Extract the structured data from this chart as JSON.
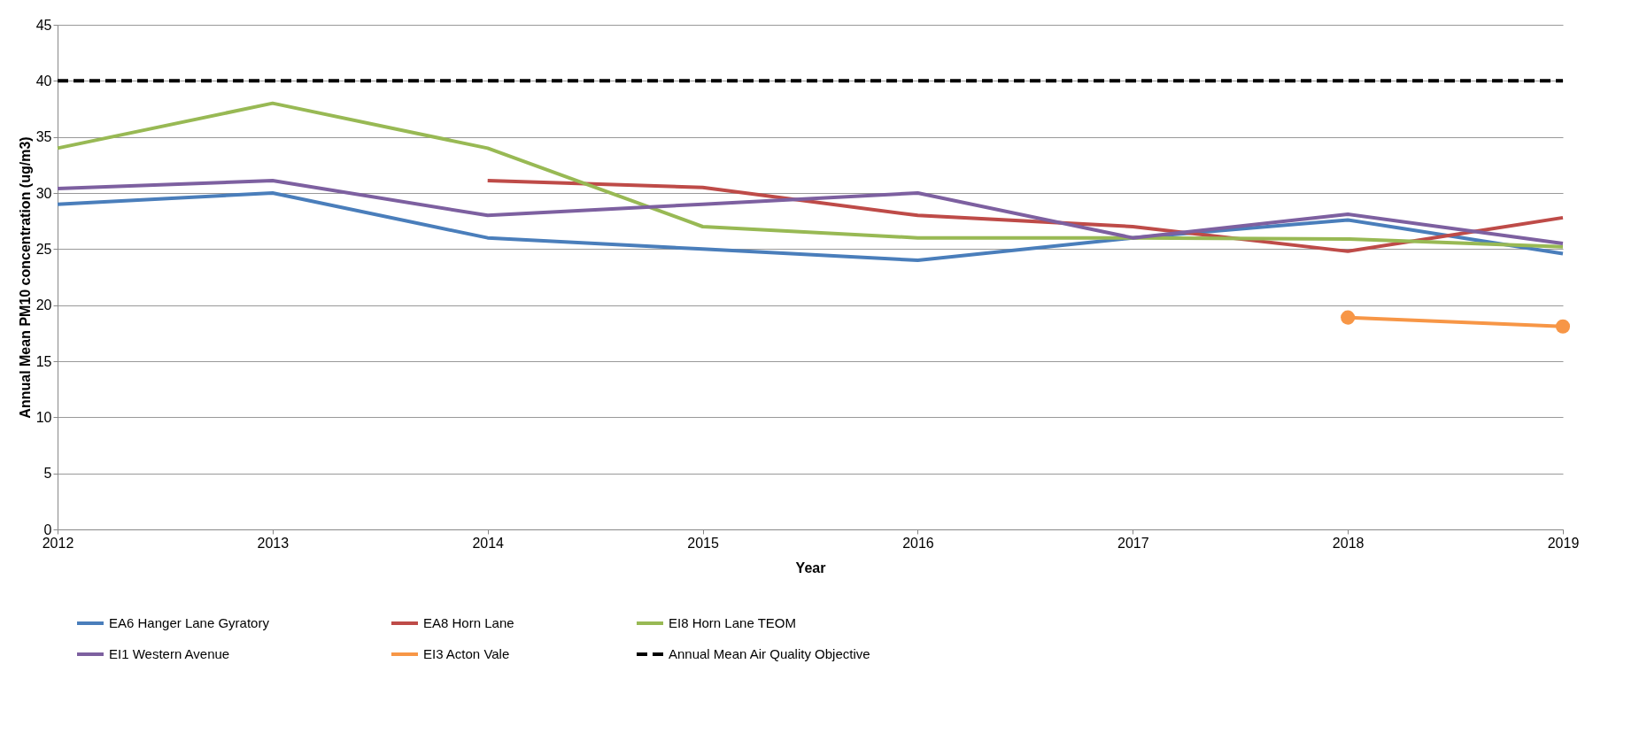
{
  "chart_data": {
    "type": "line",
    "xlabel": "Year",
    "ylabel": "Annual Mean PM10 concentration (ug/m3)",
    "x": [
      2012,
      2013,
      2014,
      2015,
      2016,
      2017,
      2018,
      2019
    ],
    "xlim": [
      2012,
      2019
    ],
    "xticks": [
      2012,
      2013,
      2014,
      2015,
      2016,
      2017,
      2018,
      2019
    ],
    "ylim": [
      0,
      45
    ],
    "yticks": [
      0,
      5,
      10,
      15,
      20,
      25,
      30,
      35,
      40,
      45
    ],
    "grid": "y",
    "legend": "bottom",
    "series": [
      {
        "name": "EA6 Hanger Lane Gyratory",
        "color": "#4a7ebb",
        "values": [
          29,
          30,
          26,
          25,
          24,
          26,
          27.6,
          24.6
        ]
      },
      {
        "name": "EA8 Horn Lane",
        "color": "#be4b48",
        "values": [
          null,
          null,
          31.1,
          30.5,
          28,
          27,
          24.8,
          27.8
        ]
      },
      {
        "name": "EI8 Horn Lane TEOM",
        "color": "#98b954",
        "values": [
          34,
          38,
          34,
          27,
          26,
          26,
          25.9,
          25.2
        ]
      },
      {
        "name": "EI1 Western Avenue",
        "color": "#7d60a0",
        "values": [
          30.4,
          31.1,
          28,
          29,
          30,
          26,
          28.1,
          25.5
        ]
      },
      {
        "name": "EI3 Acton Vale",
        "color": "#f79646",
        "marker": "circle",
        "values": [
          null,
          null,
          null,
          null,
          null,
          null,
          18.9,
          18.1
        ]
      },
      {
        "name": "Annual Mean Air Quality Objective",
        "color": "#000000",
        "line_style": "dashed",
        "values": [
          40,
          40,
          40,
          40,
          40,
          40,
          40,
          40
        ]
      }
    ]
  }
}
